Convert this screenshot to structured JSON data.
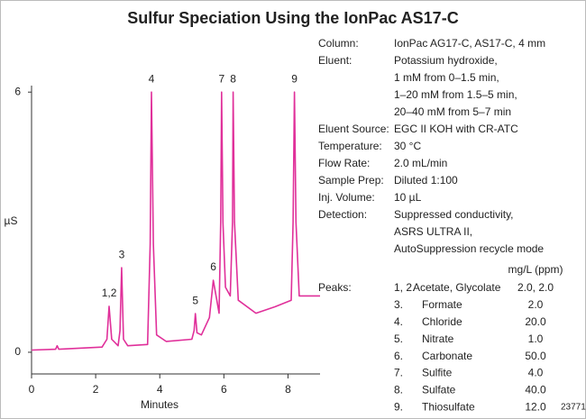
{
  "chart_data": {
    "type": "line",
    "title": "Sulfur Speciation Using the IonPac AS17-C",
    "x_label": "Minutes",
    "y_label": "µS",
    "xlim": [
      0,
      9
    ],
    "ylim": [
      -0.5,
      6.15
    ],
    "xticks": [
      0,
      2,
      4,
      6,
      8
    ],
    "yticks": [
      0,
      6
    ],
    "series": [
      {
        "color": "#e0309a",
        "x": [
          0,
          0.75,
          0.8,
          0.85,
          2.2,
          2.35,
          2.42,
          2.5,
          2.7,
          2.76,
          2.81,
          2.87,
          3.0,
          3.62,
          3.7,
          3.74,
          3.8,
          3.9,
          4.2,
          5.0,
          5.07,
          5.11,
          5.16,
          5.3,
          5.55,
          5.67,
          5.78,
          5.85,
          5.9,
          5.93,
          5.97,
          6.05,
          6.2,
          6.27,
          6.29,
          6.33,
          6.45,
          7.0,
          7.6,
          8.1,
          8.16,
          8.2,
          8.25,
          8.35,
          9
        ],
        "values": [
          0.05,
          0.07,
          0.15,
          0.07,
          0.12,
          0.3,
          1.06,
          0.3,
          0.15,
          0.5,
          1.95,
          0.3,
          0.15,
          0.18,
          2.5,
          6,
          2.5,
          0.4,
          0.25,
          0.3,
          0.5,
          0.89,
          0.45,
          0.4,
          0.8,
          1.66,
          1.2,
          0.9,
          3,
          6,
          3,
          1.5,
          1.3,
          3,
          6,
          3,
          1.2,
          0.9,
          1.05,
          1.2,
          3,
          6,
          3,
          1.3,
          1.3
        ]
      }
    ],
    "annotations": [
      {
        "text": "1,2",
        "x": 2.42,
        "y": 1.06
      },
      {
        "text": "3",
        "x": 2.81,
        "y": 1.95
      },
      {
        "text": "4",
        "x": 3.74,
        "y": 6
      },
      {
        "text": "5",
        "x": 5.11,
        "y": 0.89
      },
      {
        "text": "6",
        "x": 5.67,
        "y": 1.66
      },
      {
        "text": "7",
        "x": 5.93,
        "y": 6
      },
      {
        "text": "8",
        "x": 6.29,
        "y": 6
      },
      {
        "text": "9",
        "x": 8.2,
        "y": 6
      }
    ]
  },
  "conditions": [
    {
      "label": "Column:",
      "lines": [
        "IonPac AG17-C, AS17-C, 4 mm"
      ]
    },
    {
      "label": "Eluent:",
      "lines": [
        "Potassium hydroxide,",
        "1 mM from 0–1.5 min,",
        "1–20 mM from 1.5–5 min,",
        "20–40 mM from 5–7 min"
      ]
    },
    {
      "label": "Eluent Source:",
      "lines": [
        "EGC II KOH with CR-ATC"
      ]
    },
    {
      "label": "Temperature:",
      "lines": [
        "30 °C"
      ]
    },
    {
      "label": "Flow Rate:",
      "lines": [
        "2.0 mL/min"
      ]
    },
    {
      "label": "Sample Prep:",
      "lines": [
        "Diluted 1:100"
      ]
    },
    {
      "label": "Inj. Volume:",
      "lines": [
        "10 µL"
      ]
    },
    {
      "label": "Detection:",
      "lines": [
        "Suppressed conductivity,",
        "ASRS ULTRA II,",
        "AutoSuppression recycle mode"
      ]
    }
  ],
  "peaks_table": {
    "header": "mg/L (ppm)",
    "label": "Peaks:",
    "rows": [
      [
        "1, 2.",
        "Acetate, Glycolate",
        "2.0, 2.0"
      ],
      [
        "3.",
        "Formate",
        "2.0"
      ],
      [
        "4.",
        "Chloride",
        "20.0"
      ],
      [
        "5.",
        "Nitrate",
        "1.0"
      ],
      [
        "6.",
        "Carbonate",
        "50.0"
      ],
      [
        "7.",
        "Sulfite",
        "4.0"
      ],
      [
        "8.",
        "Sulfate",
        "40.0"
      ],
      [
        "9.",
        "Thiosulfate",
        "12.0"
      ]
    ]
  },
  "figure_number": "23771"
}
